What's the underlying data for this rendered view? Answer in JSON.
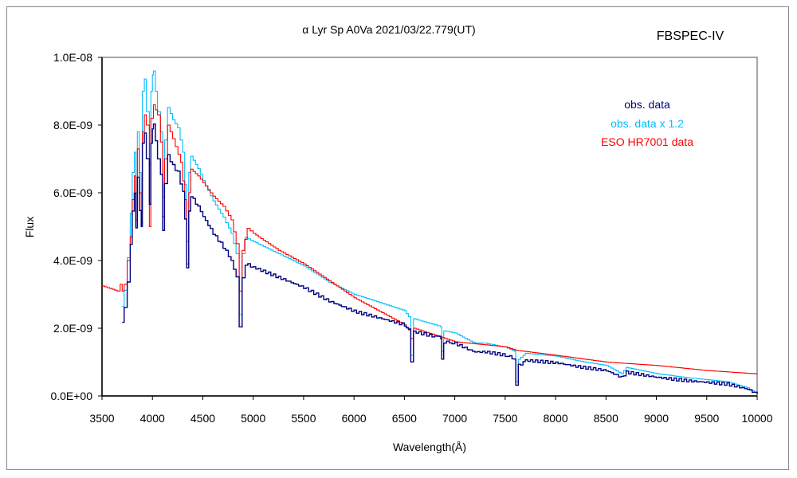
{
  "chart_data": {
    "type": "line",
    "title": "α Lyr  Sp A0Va  2021/03/22.779(UT)",
    "instrument": "FBSPEC-IV",
    "xlabel": "Wavelength(Å)",
    "ylabel": "Flux",
    "xlim": [
      3500,
      10000
    ],
    "ylim": [
      0,
      1e-08
    ],
    "xticks": [
      "3500",
      "4000",
      "4500",
      "5000",
      "5500",
      "6000",
      "6500",
      "7000",
      "7500",
      "8000",
      "8500",
      "9000",
      "9500",
      "10000"
    ],
    "yticks": [
      "0.0E+00",
      "2.0E-09",
      "4.0E-09",
      "6.0E-09",
      "8.0E-09",
      "1.0E-08"
    ],
    "grid": false,
    "legend_position": "top-right",
    "y_unit": "1e-9",
    "series": [
      {
        "name": "obs. data",
        "color": "#000080",
        "x": [
          3700,
          3720,
          3750,
          3780,
          3800,
          3820,
          3835,
          3850,
          3870,
          3889,
          3900,
          3920,
          3940,
          3970,
          3985,
          4000,
          4010,
          4050,
          4080,
          4102,
          4120,
          4150,
          4200,
          4250,
          4300,
          4320,
          4340,
          4360,
          4380,
          4450,
          4500,
          4600,
          4700,
          4780,
          4830,
          4861,
          4890,
          4920,
          5000,
          5250,
          5500,
          5750,
          6000,
          6250,
          6500,
          6540,
          6563,
          6590,
          6800,
          6860,
          6870,
          6890,
          7000,
          7150,
          7200,
          7300,
          7500,
          7590,
          7605,
          7630,
          7700,
          8000,
          8250,
          8500,
          8650,
          8700,
          9000,
          9300,
          9500,
          9700,
          9900,
          10000
        ],
        "y": [
          2.2,
          2.6,
          3.4,
          4.5,
          5.5,
          6.0,
          5.0,
          6.5,
          5.5,
          5.0,
          7.5,
          7.8,
          7.0,
          5.7,
          7.5,
          7.9,
          8.0,
          7.0,
          6.5,
          4.9,
          6.3,
          7.1,
          6.8,
          6.6,
          6.0,
          5.2,
          3.8,
          5.5,
          5.9,
          5.6,
          5.3,
          4.8,
          4.4,
          4.0,
          3.5,
          2.0,
          3.5,
          3.9,
          3.8,
          3.5,
          3.2,
          2.8,
          2.5,
          2.3,
          2.1,
          1.95,
          1.0,
          1.9,
          1.75,
          1.7,
          1.1,
          1.6,
          1.55,
          1.35,
          1.3,
          1.3,
          1.2,
          1.1,
          0.35,
          0.9,
          1.05,
          0.98,
          0.85,
          0.75,
          0.55,
          0.7,
          0.55,
          0.45,
          0.4,
          0.35,
          0.2,
          0.05
        ]
      },
      {
        "name": "obs. data x 1.2",
        "color": "#00BFFF",
        "scale_of": "obs. data",
        "factor": 1.2
      },
      {
        "name": "ESO HR7001 data",
        "color": "#FF0000",
        "x": [
          3500,
          3600,
          3650,
          3680,
          3700,
          3720,
          3750,
          3780,
          3800,
          3820,
          3835,
          3850,
          3870,
          3889,
          3900,
          3920,
          3940,
          3970,
          3985,
          4010,
          4050,
          4080,
          4102,
          4120,
          4150,
          4200,
          4280,
          4320,
          4340,
          4360,
          4380,
          4450,
          4500,
          4600,
          4700,
          4780,
          4830,
          4861,
          4890,
          4940,
          5000,
          5250,
          5500,
          5750,
          6000,
          6250,
          6500,
          6540,
          6563,
          6590,
          6800,
          7000,
          7500,
          7600,
          8000,
          8500,
          9000,
          9500,
          10000
        ],
        "y": [
          3.25,
          3.15,
          3.1,
          3.3,
          3.1,
          3.3,
          4.0,
          4.7,
          5.8,
          6.5,
          5.2,
          7.3,
          6.0,
          5.0,
          7.8,
          8.3,
          8.0,
          5.0,
          8.2,
          8.6,
          8.3,
          7.5,
          5.3,
          7.0,
          8.0,
          7.6,
          6.9,
          5.8,
          3.9,
          6.0,
          6.7,
          6.5,
          6.3,
          5.9,
          5.6,
          5.2,
          4.5,
          3.1,
          4.3,
          4.95,
          4.8,
          4.3,
          3.9,
          3.4,
          2.9,
          2.5,
          2.1,
          1.95,
          1.7,
          2.0,
          1.8,
          1.6,
          1.45,
          1.35,
          1.2,
          1.0,
          0.9,
          0.75,
          0.65
        ]
      }
    ]
  }
}
